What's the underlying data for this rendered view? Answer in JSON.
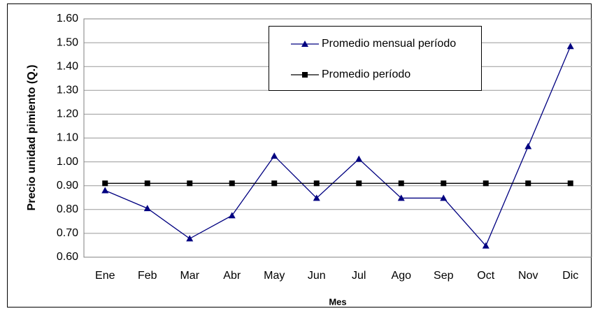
{
  "chart_data": {
    "type": "line",
    "xlabel": "Mes",
    "ylabel": "Precio unidad pimiento (Q.)",
    "categories": [
      "Ene",
      "Feb",
      "Mar",
      "Abr",
      "May",
      "Jun",
      "Jul",
      "Ago",
      "Sep",
      "Oct",
      "Nov",
      "Dic"
    ],
    "series": [
      {
        "name": "Promedio mensual período",
        "color": "#000080",
        "marker": "triangle",
        "values": [
          0.88,
          0.805,
          0.678,
          0.775,
          1.025,
          0.848,
          1.012,
          0.848,
          0.848,
          0.648,
          1.065,
          1.485
        ]
      },
      {
        "name": "Promedio período",
        "color": "#000000",
        "marker": "square",
        "values": [
          0.91,
          0.91,
          0.91,
          0.91,
          0.91,
          0.91,
          0.91,
          0.91,
          0.91,
          0.91,
          0.91,
          0.91
        ]
      }
    ],
    "ylim": [
      0.6,
      1.6
    ],
    "yticks": [
      {
        "value": 0.6,
        "label": "0.60"
      },
      {
        "value": 0.7,
        "label": "0.70"
      },
      {
        "value": 0.8,
        "label": "0.80"
      },
      {
        "value": 0.9,
        "label": "0.90"
      },
      {
        "value": 1.0,
        "label": "1.00"
      },
      {
        "value": 1.1,
        "label": "1.10"
      },
      {
        "value": 1.2,
        "label": "1.20"
      },
      {
        "value": 1.3,
        "label": "1.30"
      },
      {
        "value": 1.4,
        "label": "1.40"
      },
      {
        "value": 1.5,
        "label": "1.50"
      },
      {
        "value": 1.6,
        "label": "1.60"
      }
    ],
    "grid": true
  }
}
